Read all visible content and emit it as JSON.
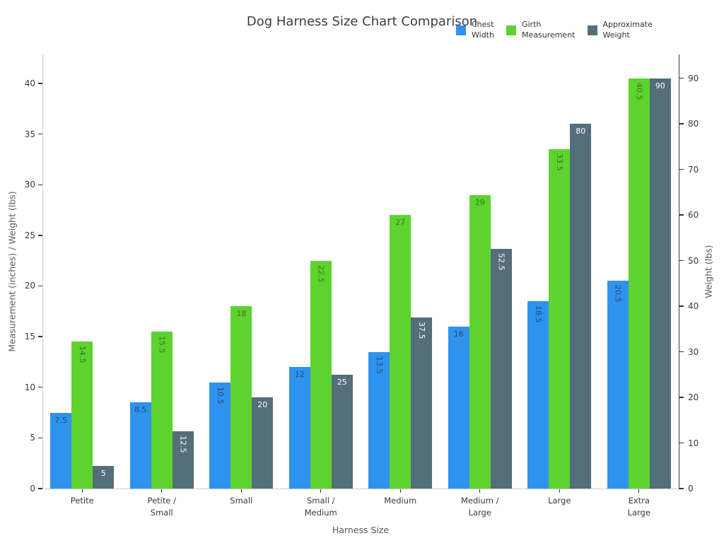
{
  "chart_data": {
    "type": "bar",
    "title": "Dog Harness Size Chart Comparison",
    "xlabel": "Harness Size",
    "ylabel_left": "Measurement (inches) / Weight (lbs)",
    "ylabel_right": "Weight (lbs)",
    "grid": false,
    "legend_position": "top-right",
    "categories": [
      "Petite",
      "Petite / Small",
      "Small",
      "Small / Medium",
      "Medium",
      "Medium / Large",
      "Large",
      "Extra Large"
    ],
    "category_tick_lines": [
      [
        "Petite"
      ],
      [
        "Petite /",
        "Small"
      ],
      [
        "Small"
      ],
      [
        "Small /",
        "Medium"
      ],
      [
        "Medium"
      ],
      [
        "Medium /",
        "Large"
      ],
      [
        "Large"
      ],
      [
        "Extra",
        "Large"
      ]
    ],
    "series": [
      {
        "name": "Chest Width",
        "legend_lines": [
          "Chest",
          "Width"
        ],
        "axis": "left",
        "color": "#2E93EE",
        "label_color": "#26496B",
        "values": [
          7.5,
          8.5,
          10.5,
          12,
          13.5,
          16,
          18.5,
          20.5
        ],
        "value_labels": [
          "7.5",
          "8.5",
          "10.5",
          "12",
          "13.5",
          "16",
          "18.5",
          "20.5"
        ]
      },
      {
        "name": "Girth Measurement",
        "legend_lines": [
          "Girth",
          "Measurement"
        ],
        "axis": "left",
        "color": "#5CD32E",
        "label_color": "#3E7120",
        "values": [
          14.5,
          15.5,
          18,
          22.5,
          27,
          29,
          33.5,
          40.5
        ],
        "value_labels": [
          "14.5",
          "15.5",
          "18",
          "22.5",
          "27",
          "29",
          "33.5",
          "40.5"
        ]
      },
      {
        "name": "Approximate Weight",
        "legend_lines": [
          "Approximate",
          "Weight"
        ],
        "axis": "right",
        "color": "#546E7A",
        "label_color": "#FFFFFF",
        "values": [
          5,
          12.5,
          20,
          25,
          37.5,
          52.5,
          80,
          90
        ],
        "value_labels": [
          "5",
          "12.5",
          "20",
          "25",
          "37.5",
          "52.5",
          "80",
          "90"
        ]
      }
    ],
    "left_axis": {
      "ticks": [
        0,
        5,
        10,
        15,
        20,
        25,
        30,
        35,
        40
      ],
      "min": 0,
      "max": 42.86
    },
    "right_axis": {
      "ticks": [
        0,
        10,
        20,
        30,
        40,
        50,
        60,
        70,
        80,
        90
      ],
      "min": 0,
      "max": 95.2
    }
  }
}
